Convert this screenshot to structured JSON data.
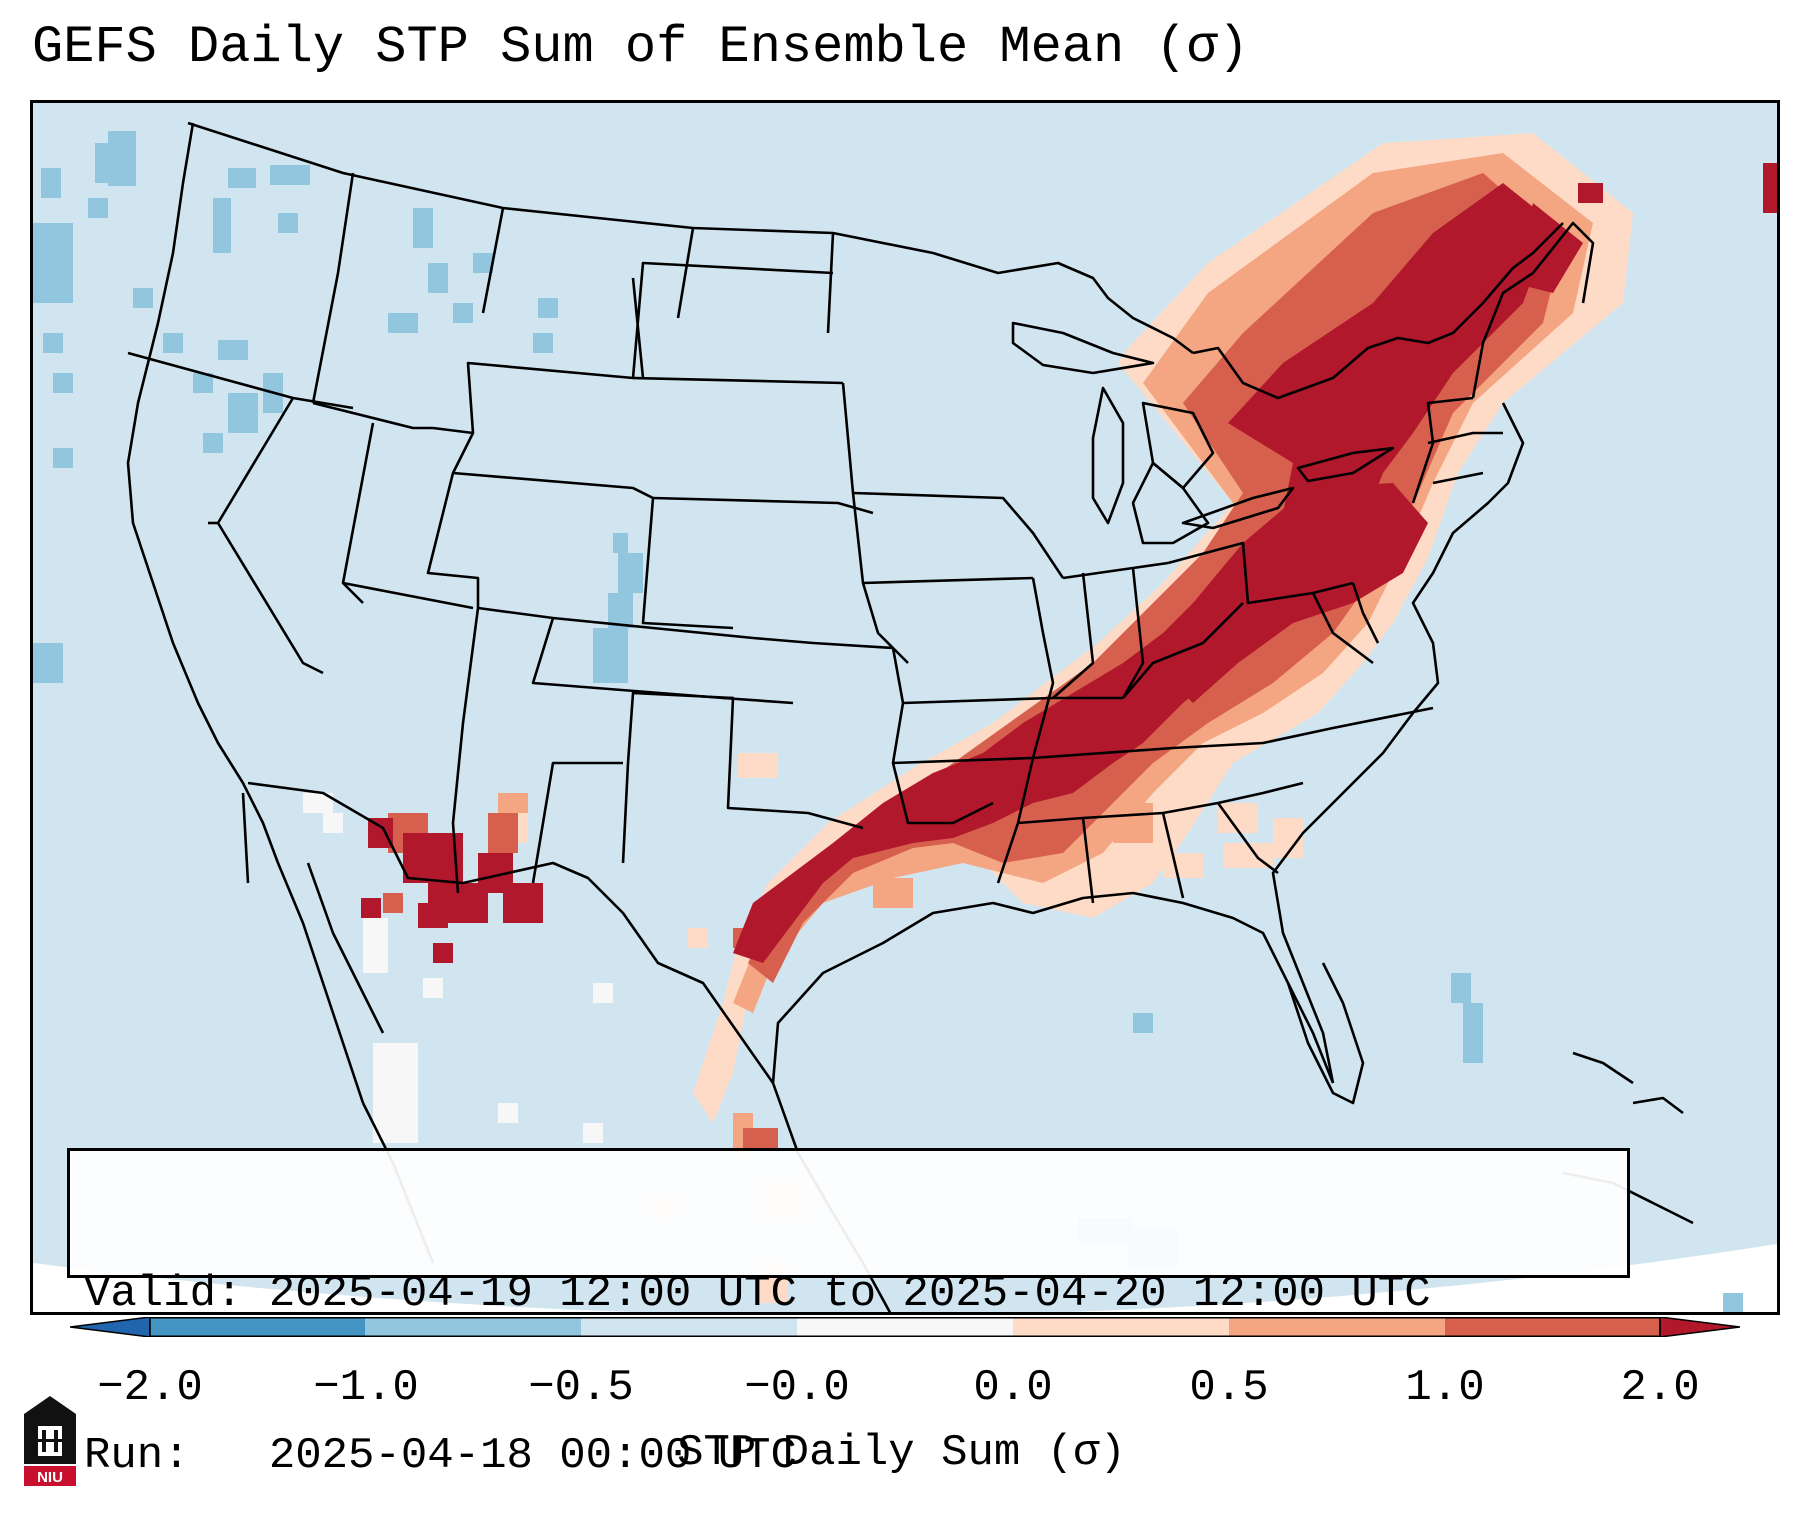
{
  "title": "GEFS Daily STP Sum of Ensemble Mean (σ)",
  "info": {
    "valid_line": "Valid: 2025-04-19 12:00 UTC to 2025-04-20 12:00 UTC",
    "run_line": "Run:   2025-04-18 00:00 UTC"
  },
  "colorbar": {
    "label": "STP Daily Sum (σ)",
    "ticks": [
      "−2.0",
      "−1.0",
      "−0.5",
      "−0.0",
      "0.0",
      "0.5",
      "1.0",
      "2.0"
    ],
    "bins": [
      {
        "range": "< -2.0",
        "color": "#2166ac"
      },
      {
        "range": "-2.0 to -1.0",
        "color": "#4393c3"
      },
      {
        "range": "-1.0 to -0.5",
        "color": "#92c5de"
      },
      {
        "range": "-0.5 to -0.0",
        "color": "#d1e5f0"
      },
      {
        "range": "-0.0 to 0.0",
        "color": "#f7f7f7"
      },
      {
        "range": "0.0 to 0.5",
        "color": "#fddbc7"
      },
      {
        "range": "0.5 to 1.0",
        "color": "#f4a582"
      },
      {
        "range": "1.0 to 2.0",
        "color": "#d6604d"
      },
      {
        "range": "> 2.0",
        "color": "#b2182b"
      }
    ]
  },
  "logo": {
    "text": "NIU"
  }
}
